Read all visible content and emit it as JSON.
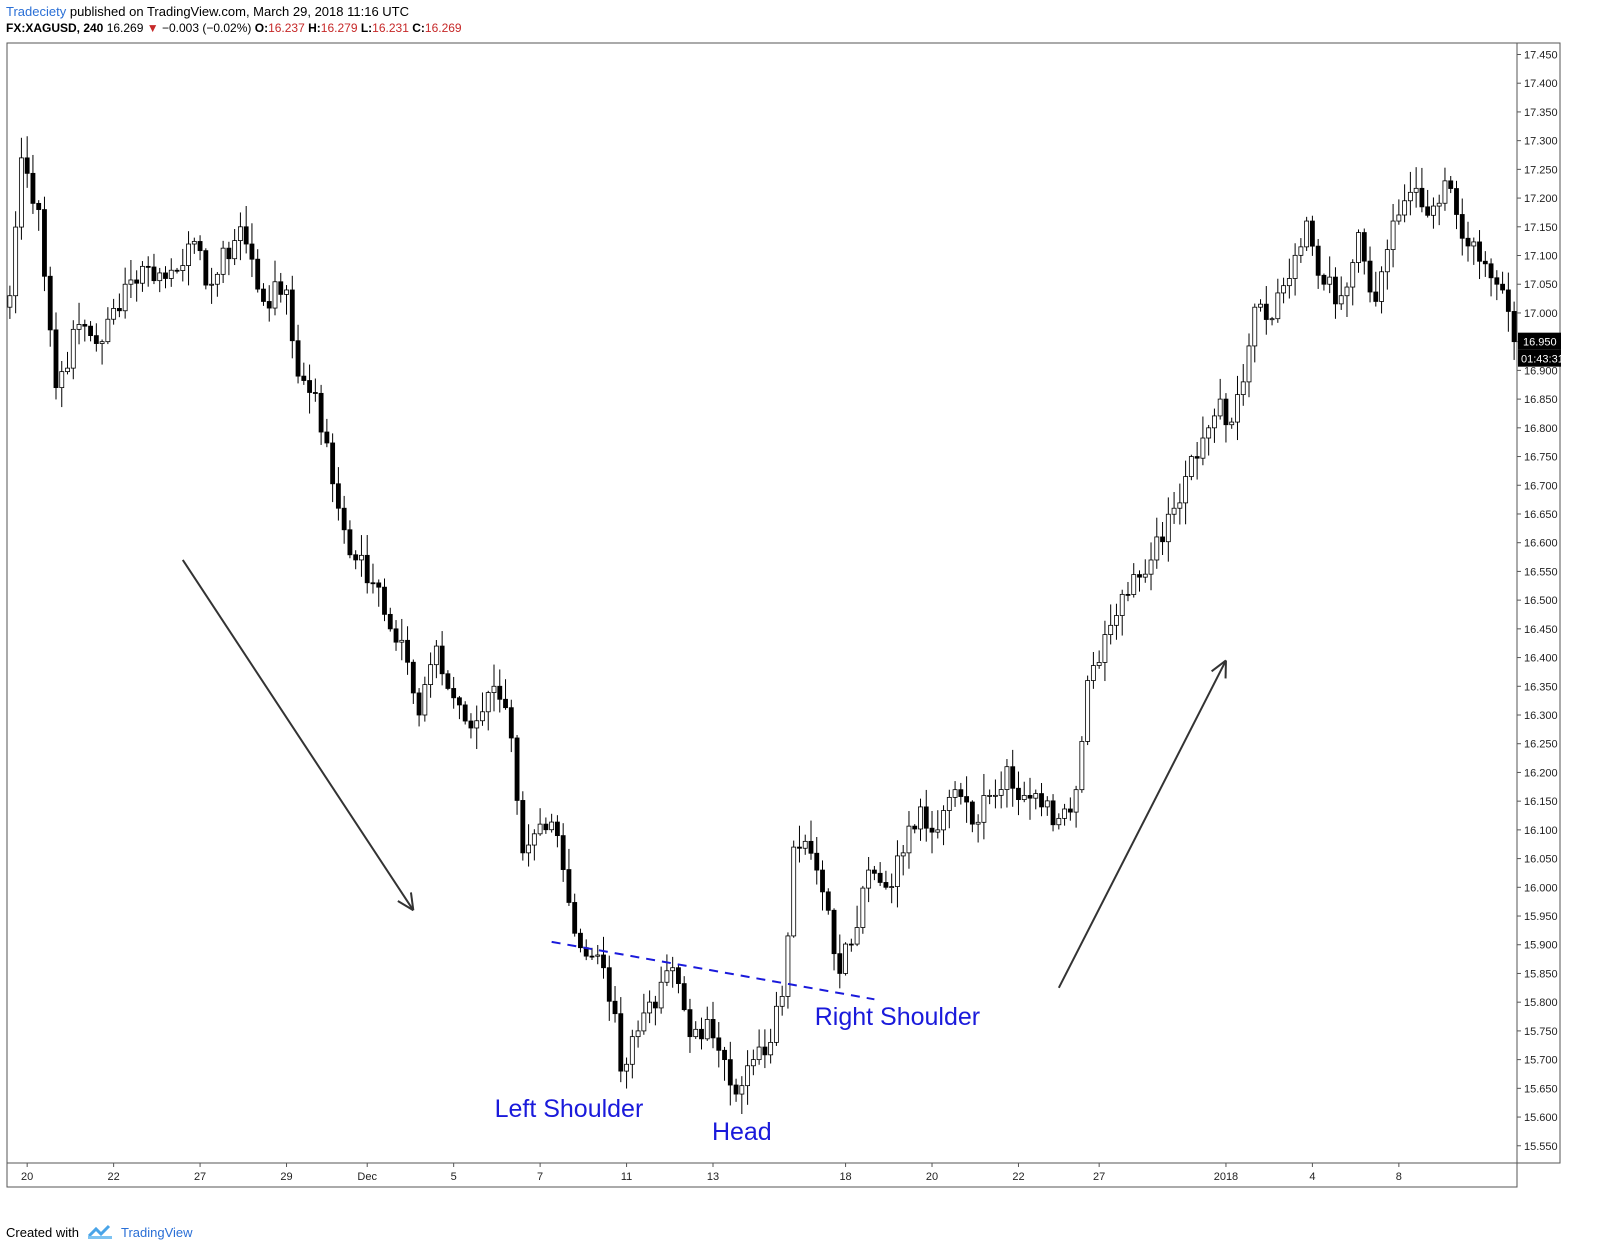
{
  "header": {
    "publisher": "Tradeciety",
    "published_text": "published on TradingView.com, March 29, 2018 11:16 UTC",
    "symbol": "FX:XAGUSD, 240",
    "last": "16.269",
    "change": "−0.003 (−0.02%)",
    "open_label": "O:",
    "open": "16.237",
    "high_label": "H:",
    "high": "16.279",
    "low_label": "L:",
    "low": "16.231",
    "close_label": "C:",
    "close": "16.269"
  },
  "footer": {
    "created_with": "Created with",
    "brand": "TradingView",
    "logo_icon": "tradingview-logo-icon"
  },
  "price_tags": {
    "last_price": "16.950",
    "countdown": "01:43:31"
  },
  "colors": {
    "up_body": "#ffffff",
    "down_body": "#000000",
    "wick": "#000000",
    "annotation": "#1a1adb",
    "arrow": "#333333",
    "neckline": "#1a1adb"
  },
  "chart_data": {
    "type": "candlestick",
    "ylim": [
      15.52,
      17.47
    ],
    "y_ticks": [
      "15.550",
      "15.600",
      "15.650",
      "15.700",
      "15.750",
      "15.800",
      "15.850",
      "15.900",
      "15.950",
      "16.000",
      "16.050",
      "16.100",
      "16.150",
      "16.200",
      "16.250",
      "16.300",
      "16.350",
      "16.400",
      "16.450",
      "16.500",
      "16.550",
      "16.600",
      "16.650",
      "16.700",
      "16.750",
      "16.800",
      "16.850",
      "16.900",
      "16.950",
      "17.000",
      "17.050",
      "17.100",
      "17.150",
      "17.200",
      "17.250",
      "17.300",
      "17.350",
      "17.400",
      "17.450"
    ],
    "x_ticks": [
      {
        "label": "20",
        "bar": 3
      },
      {
        "label": "22",
        "bar": 18
      },
      {
        "label": "27",
        "bar": 33
      },
      {
        "label": "29",
        "bar": 48
      },
      {
        "label": "Dec",
        "bar": 62
      },
      {
        "label": "5",
        "bar": 77
      },
      {
        "label": "7",
        "bar": 92
      },
      {
        "label": "11",
        "bar": 107
      },
      {
        "label": "13",
        "bar": 122
      },
      {
        "label": "18",
        "bar": 145
      },
      {
        "label": "20",
        "bar": 160
      },
      {
        "label": "22",
        "bar": 175
      },
      {
        "label": "27",
        "bar": 189
      },
      {
        "label": "2018",
        "bar": 211
      },
      {
        "label": "4",
        "bar": 226
      },
      {
        "label": "8",
        "bar": 241
      }
    ],
    "bar_count": 262,
    "anchors": [
      {
        "bar": 0,
        "close": 17.03
      },
      {
        "bar": 2,
        "close": 17.27
      },
      {
        "bar": 5,
        "close": 17.18
      },
      {
        "bar": 8,
        "close": 16.87
      },
      {
        "bar": 12,
        "close": 16.98
      },
      {
        "bar": 16,
        "close": 16.95
      },
      {
        "bar": 20,
        "close": 17.05
      },
      {
        "bar": 24,
        "close": 17.08
      },
      {
        "bar": 27,
        "close": 17.06
      },
      {
        "bar": 31,
        "close": 17.12
      },
      {
        "bar": 35,
        "close": 17.05
      },
      {
        "bar": 40,
        "close": 17.15
      },
      {
        "bar": 44,
        "close": 17.02
      },
      {
        "bar": 48,
        "close": 17.04
      },
      {
        "bar": 50,
        "close": 16.89
      },
      {
        "bar": 53,
        "close": 16.86
      },
      {
        "bar": 57,
        "close": 16.66
      },
      {
        "bar": 60,
        "close": 16.57
      },
      {
        "bar": 63,
        "close": 16.53
      },
      {
        "bar": 66,
        "close": 16.45
      },
      {
        "bar": 68,
        "close": 16.43
      },
      {
        "bar": 71,
        "close": 16.3
      },
      {
        "bar": 74,
        "close": 16.42
      },
      {
        "bar": 77,
        "close": 16.33
      },
      {
        "bar": 81,
        "close": 16.29
      },
      {
        "bar": 84,
        "close": 16.35
      },
      {
        "bar": 87,
        "close": 16.26
      },
      {
        "bar": 89,
        "close": 16.06
      },
      {
        "bar": 92,
        "close": 16.11
      },
      {
        "bar": 95,
        "close": 16.09
      },
      {
        "bar": 98,
        "close": 15.92
      },
      {
        "bar": 101,
        "close": 15.88
      },
      {
        "bar": 103,
        "close": 15.86
      },
      {
        "bar": 105,
        "close": 15.78
      },
      {
        "bar": 106,
        "close": 15.68
      },
      {
        "bar": 109,
        "close": 15.75
      },
      {
        "bar": 112,
        "close": 15.79
      },
      {
        "bar": 115,
        "close": 15.86
      },
      {
        "bar": 118,
        "close": 15.74
      },
      {
        "bar": 121,
        "close": 15.77
      },
      {
        "bar": 124,
        "close": 15.7
      },
      {
        "bar": 126,
        "close": 15.64
      },
      {
        "bar": 129,
        "close": 15.7
      },
      {
        "bar": 132,
        "close": 15.73
      },
      {
        "bar": 134,
        "close": 15.81
      },
      {
        "bar": 136,
        "close": 16.07
      },
      {
        "bar": 138,
        "close": 16.08
      },
      {
        "bar": 140,
        "close": 16.03
      },
      {
        "bar": 142,
        "close": 15.96
      },
      {
        "bar": 144,
        "close": 15.85
      },
      {
        "bar": 147,
        "close": 15.93
      },
      {
        "bar": 149,
        "close": 16.03
      },
      {
        "bar": 152,
        "close": 16.0
      },
      {
        "bar": 155,
        "close": 16.06
      },
      {
        "bar": 158,
        "close": 16.14
      },
      {
        "bar": 161,
        "close": 16.1
      },
      {
        "bar": 164,
        "close": 16.17
      },
      {
        "bar": 167,
        "close": 16.11
      },
      {
        "bar": 170,
        "close": 16.16
      },
      {
        "bar": 173,
        "close": 16.21
      },
      {
        "bar": 176,
        "close": 16.16
      },
      {
        "bar": 179,
        "close": 16.14
      },
      {
        "bar": 182,
        "close": 16.12
      },
      {
        "bar": 185,
        "close": 16.17
      },
      {
        "bar": 187,
        "close": 16.36
      },
      {
        "bar": 190,
        "close": 16.44
      },
      {
        "bar": 193,
        "close": 16.51
      },
      {
        "bar": 196,
        "close": 16.54
      },
      {
        "bar": 199,
        "close": 16.61
      },
      {
        "bar": 202,
        "close": 16.66
      },
      {
        "bar": 205,
        "close": 16.75
      },
      {
        "bar": 208,
        "close": 16.8
      },
      {
        "bar": 210,
        "close": 16.85
      },
      {
        "bar": 212,
        "close": 16.81
      },
      {
        "bar": 214,
        "close": 16.88
      },
      {
        "bar": 216,
        "close": 17.01
      },
      {
        "bar": 219,
        "close": 16.99
      },
      {
        "bar": 222,
        "close": 17.06
      },
      {
        "bar": 225,
        "close": 17.16
      },
      {
        "bar": 228,
        "close": 17.05
      },
      {
        "bar": 231,
        "close": 17.03
      },
      {
        "bar": 234,
        "close": 17.14
      },
      {
        "bar": 237,
        "close": 17.02
      },
      {
        "bar": 240,
        "close": 17.16
      },
      {
        "bar": 243,
        "close": 17.21
      },
      {
        "bar": 246,
        "close": 17.17
      },
      {
        "bar": 249,
        "close": 17.23
      },
      {
        "bar": 252,
        "close": 17.13
      },
      {
        "bar": 255,
        "close": 17.09
      },
      {
        "bar": 258,
        "close": 17.05
      },
      {
        "bar": 261,
        "close": 16.95
      }
    ],
    "annotations": [
      {
        "text": "Left Shoulder",
        "bar": 97,
        "price": 15.6
      },
      {
        "text": "Head",
        "bar": 127,
        "price": 15.56
      },
      {
        "text": "Right Shoulder",
        "bar": 154,
        "price": 15.76
      }
    ],
    "neckline": {
      "from": {
        "bar": 94,
        "price": 15.905
      },
      "to": {
        "bar": 150,
        "price": 15.805
      }
    },
    "trend_arrows": [
      {
        "from": {
          "bar": 30,
          "price": 16.57
        },
        "to": {
          "bar": 70,
          "price": 15.96
        }
      },
      {
        "from": {
          "bar": 182,
          "price": 15.825
        },
        "to": {
          "bar": 211,
          "price": 16.395
        }
      }
    ]
  }
}
